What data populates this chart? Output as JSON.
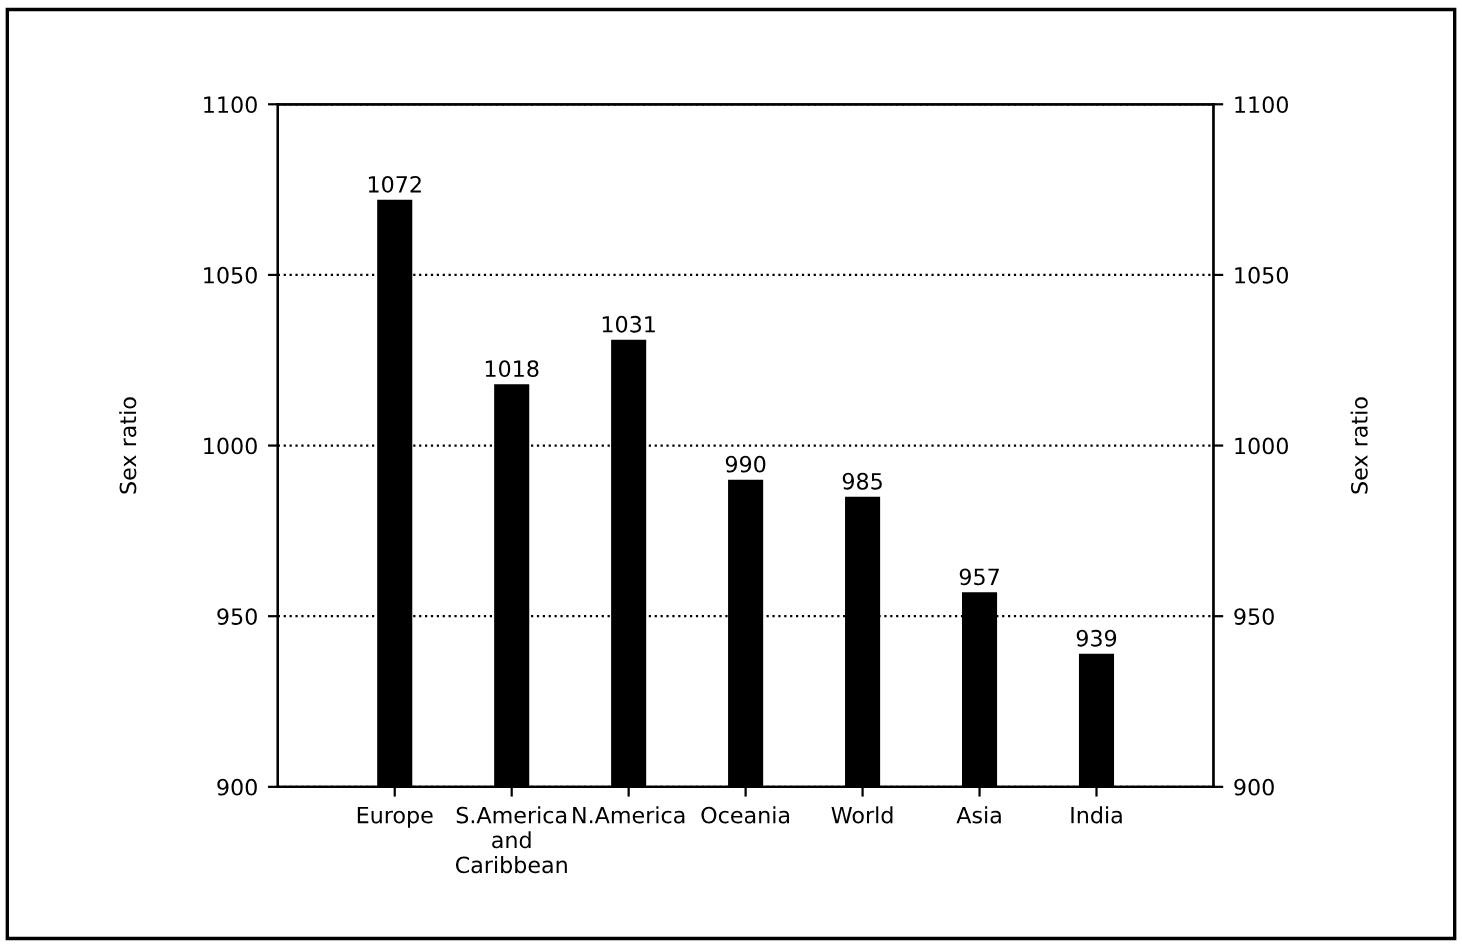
{
  "chart_data": {
    "type": "bar",
    "categories": [
      "Europe",
      "S.America\nand\nCaribbean",
      "N.America",
      "Oceania",
      "World",
      "Asia",
      "India"
    ],
    "values": [
      1072,
      1018,
      1031,
      990,
      985,
      957,
      939
    ],
    "color": "#000000",
    "ylabel": "Sex ratio",
    "y2label": "Sex ratio",
    "ylim": [
      900,
      1100
    ],
    "yticks": [
      900,
      950,
      1000,
      1050,
      1100
    ],
    "y2lim": [
      900,
      1100
    ],
    "y2ticks": [
      900,
      950,
      1000,
      1050,
      1100
    ],
    "grid": "y",
    "line_style": "dotted",
    "data_labels": true,
    "legend": false
  }
}
